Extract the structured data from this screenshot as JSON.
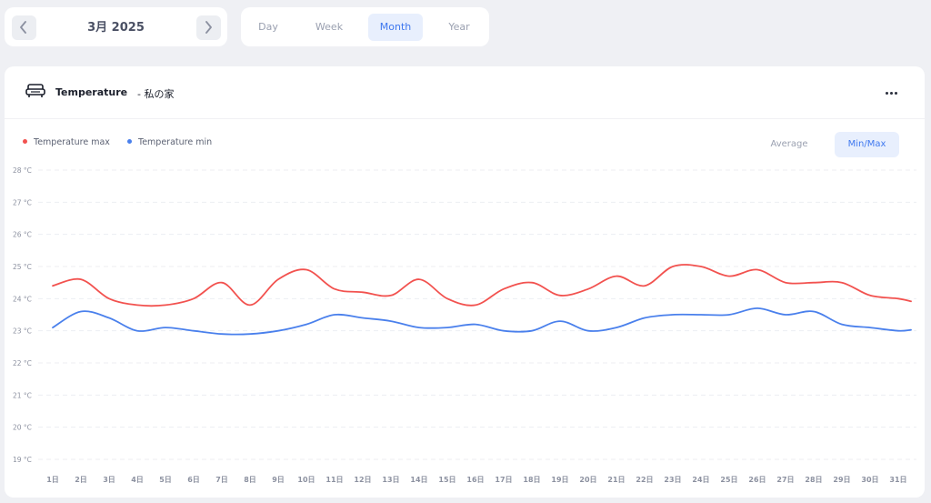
{
  "period": {
    "label": "3月 2025",
    "prev_icon": "chevron-left-icon",
    "next_icon": "chevron-right-icon"
  },
  "range_tabs": [
    {
      "label": "Day",
      "active": false
    },
    {
      "label": "Week",
      "active": false
    },
    {
      "label": "Month",
      "active": true
    },
    {
      "label": "Year",
      "active": false
    }
  ],
  "card": {
    "icon": "sofa-icon",
    "title": "Temperature",
    "subtitle": "-  私の家",
    "menu_icon": "more-horizontal-icon"
  },
  "modes": [
    {
      "label": "Average",
      "active": false
    },
    {
      "label": "Min/Max",
      "active": true
    }
  ],
  "colors": {
    "max": "#f2524f",
    "min": "#4a80ec",
    "accent": "#3f78ef"
  },
  "chart_data": {
    "type": "line",
    "x": [
      "1日",
      "2日",
      "3日",
      "4日",
      "5日",
      "6日",
      "7日",
      "8日",
      "9日",
      "10日",
      "11日",
      "12日",
      "13日",
      "14日",
      "15日",
      "16日",
      "17日",
      "18日",
      "19日",
      "20日",
      "21日",
      "22日",
      "23日",
      "24日",
      "25日",
      "26日",
      "27日",
      "28日",
      "29日",
      "30日",
      "31日"
    ],
    "series": [
      {
        "name": "Temperature max",
        "color": "#f2524f",
        "values": [
          24.4,
          24.6,
          24.0,
          23.8,
          23.8,
          24.0,
          24.5,
          23.8,
          24.6,
          24.9,
          24.3,
          24.2,
          24.1,
          24.6,
          24.0,
          23.8,
          24.3,
          24.5,
          24.1,
          24.3,
          24.7,
          24.4,
          25.0,
          25.0,
          24.7,
          24.9,
          24.5,
          24.5,
          24.5,
          24.1,
          24.0
        ]
      },
      {
        "name": "Temperature min",
        "color": "#4a80ec",
        "values": [
          23.1,
          23.6,
          23.4,
          23.0,
          23.1,
          23.0,
          22.9,
          22.9,
          23.0,
          23.2,
          23.5,
          23.4,
          23.3,
          23.1,
          23.1,
          23.2,
          23.0,
          23.0,
          23.3,
          23.0,
          23.1,
          23.4,
          23.5,
          23.5,
          23.5,
          23.7,
          23.5,
          23.6,
          23.2,
          23.1,
          23.0
        ]
      }
    ],
    "y_ticks": [
      "28 °C",
      "27 °C",
      "26 °C",
      "25 °C",
      "24 °C",
      "23 °C",
      "22 °C",
      "21 °C",
      "20 °C",
      "19 °C"
    ],
    "ylim": [
      19,
      28
    ],
    "grid": true,
    "legend": "top-left"
  }
}
